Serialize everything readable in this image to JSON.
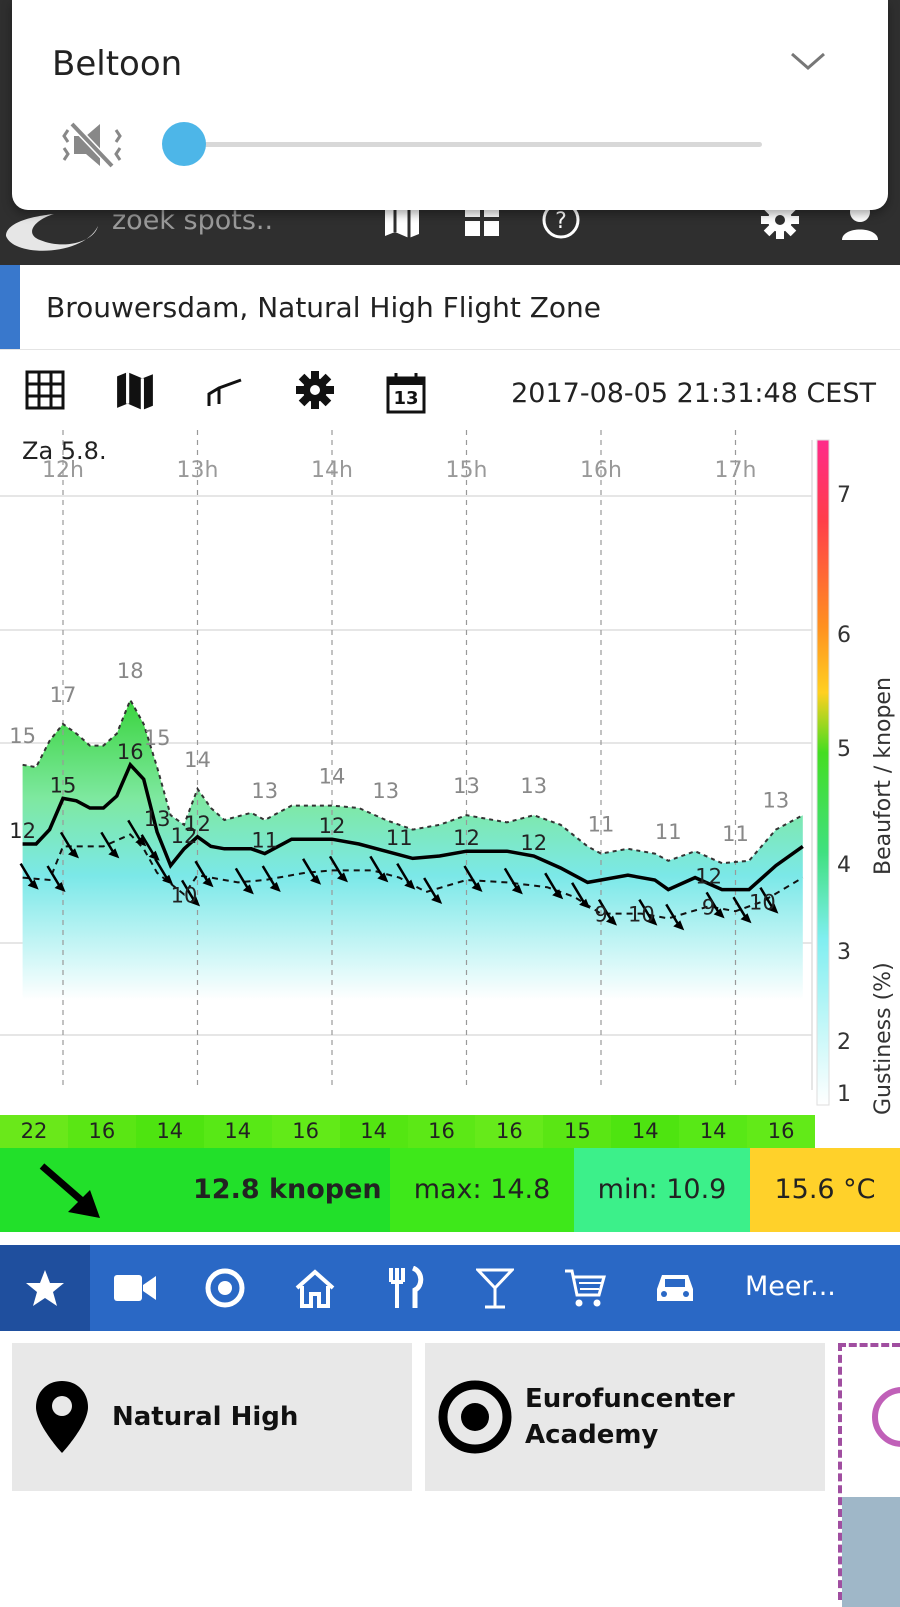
{
  "volume_panel": {
    "title": "Beltoon",
    "icon": "muted-speaker-icon",
    "level": 0
  },
  "header": {
    "search_placeholder": "zoek spots..",
    "icons": [
      "logo-icon",
      "map-icon",
      "grid-icon",
      "help-icon",
      "gear-icon",
      "user-icon"
    ]
  },
  "spot": {
    "title": "Brouwersdam, Natural High Flight Zone"
  },
  "toolbar": {
    "timestamp": "2017-08-05 21:31:48 CEST",
    "icons": [
      "table-icon",
      "map-icon",
      "graph-icon",
      "settings-icon",
      "calendar-icon"
    ],
    "calendar_day": "13"
  },
  "chart_data": {
    "type": "line",
    "day_label": "Za 5.8.",
    "x_ticks": [
      "12h",
      "13h",
      "14h",
      "15h",
      "16h",
      "17h"
    ],
    "ylabel_right": "Beaufort / knopen",
    "ylabel_right2": "Gustiness (%)",
    "beaufort_ticks": [
      "1",
      "2",
      "3",
      "4",
      "5",
      "6",
      "7"
    ],
    "series": [
      {
        "name": "gust",
        "labels": [
          {
            "t": 11.7,
            "v": "15"
          },
          {
            "t": 12.0,
            "v": "17"
          },
          {
            "t": 12.5,
            "v": "18"
          },
          {
            "t": 12.7,
            "v": "15"
          },
          {
            "t": 13.0,
            "v": "14"
          },
          {
            "t": 13.5,
            "v": "13"
          },
          {
            "t": 14.0,
            "v": "14"
          },
          {
            "t": 14.4,
            "v": "13"
          },
          {
            "t": 15.0,
            "v": "13"
          },
          {
            "t": 15.5,
            "v": "13"
          },
          {
            "t": 16.0,
            "v": "11"
          },
          {
            "t": 16.5,
            "v": "11"
          },
          {
            "t": 17.0,
            "v": "11"
          },
          {
            "t": 17.3,
            "v": "13"
          }
        ]
      },
      {
        "name": "avg",
        "labels": [
          {
            "t": 11.7,
            "v": "12"
          },
          {
            "t": 12.0,
            "v": "15"
          },
          {
            "t": 12.5,
            "v": "16"
          },
          {
            "t": 12.7,
            "v": "13"
          },
          {
            "t": 12.9,
            "v": "12"
          },
          {
            "t": 13.0,
            "v": "12"
          },
          {
            "t": 13.5,
            "v": "11"
          },
          {
            "t": 14.0,
            "v": "12"
          },
          {
            "t": 14.5,
            "v": "11"
          },
          {
            "t": 15.0,
            "v": "12"
          },
          {
            "t": 15.5,
            "v": "12"
          },
          {
            "t": 16.8,
            "v": "12"
          }
        ]
      },
      {
        "name": "min",
        "labels": [
          {
            "t": 12.9,
            "v": "10"
          },
          {
            "t": 16.0,
            "v": "9"
          },
          {
            "t": 16.3,
            "v": "10"
          },
          {
            "t": 16.8,
            "v": "9"
          },
          {
            "t": 17.2,
            "v": "10"
          }
        ]
      }
    ]
  },
  "gustiness_strip": [
    "22",
    "16",
    "14",
    "14",
    "16",
    "14",
    "16",
    "16",
    "15",
    "14",
    "14",
    "16"
  ],
  "summary": {
    "direction_icon": "arrow-southeast-icon",
    "speed": "12.8 knopen",
    "max": "max: 14.8",
    "min": "min: 10.9",
    "temp": "15.6 °C"
  },
  "categories": {
    "icons": [
      "star-icon",
      "video-icon",
      "target-icon",
      "home-icon",
      "restaurant-icon",
      "cocktail-icon",
      "cart-icon",
      "car-icon"
    ],
    "more_label": "Meer..."
  },
  "cards": [
    {
      "title": "Natural High",
      "icon": "location-pin-icon"
    },
    {
      "title_line1": "Eurofuncenter",
      "title_line2": "Academy",
      "icon": "target-icon"
    }
  ]
}
